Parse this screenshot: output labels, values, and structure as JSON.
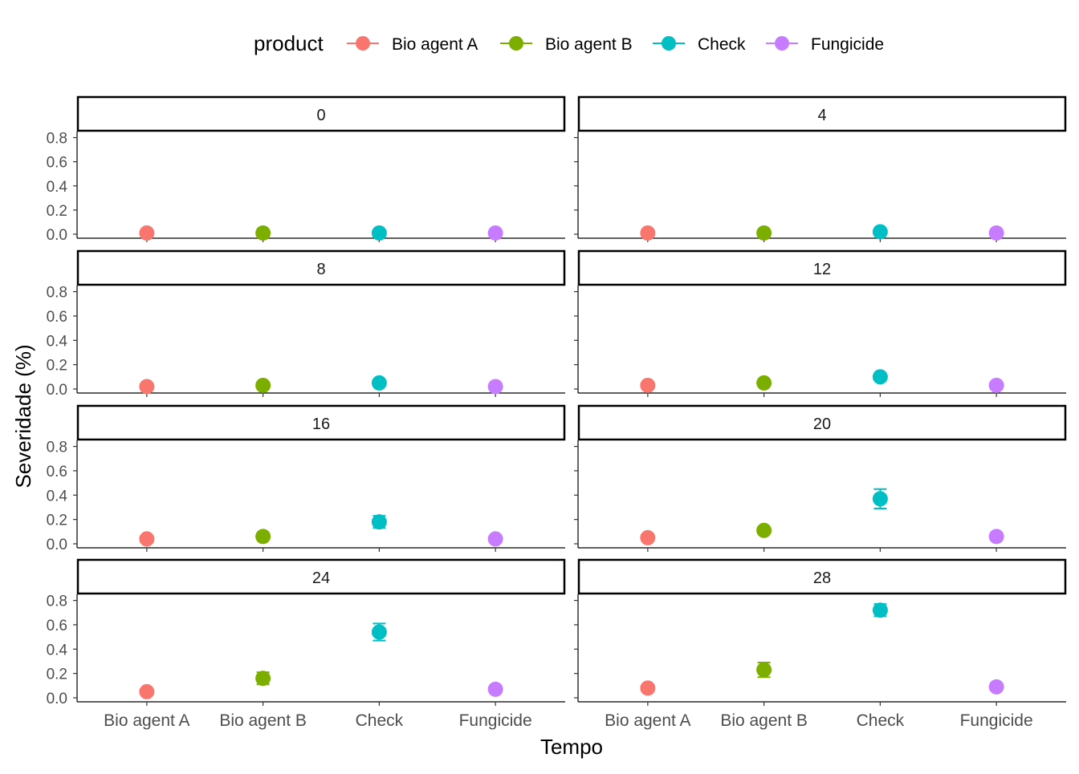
{
  "chart_data": {
    "type": "scatter",
    "legend": {
      "title": "product",
      "placement": "top",
      "entries": [
        {
          "label": "Bio agent A",
          "color": "#F8766D"
        },
        {
          "label": "Bio agent B",
          "color": "#7CAE00"
        },
        {
          "label": "Check",
          "color": "#00BFC4"
        },
        {
          "label": "Fungicide",
          "color": "#C77CFF"
        }
      ]
    },
    "xlabel": "Tempo",
    "ylabel": "Severidade (%)",
    "categories": [
      "Bio agent A",
      "Bio agent B",
      "Check",
      "Fungicide"
    ],
    "ylim": [
      0,
      0.85
    ],
    "yticks": [
      0.0,
      0.2,
      0.4,
      0.6,
      0.8
    ],
    "ytick_labels": [
      "0.0",
      "0.2",
      "0.4",
      "0.6",
      "0.8"
    ],
    "grid": false,
    "facets": [
      {
        "label": "0",
        "values": [
          0.01,
          0.01,
          0.01,
          0.01
        ],
        "errors": [
          0,
          0,
          0,
          0
        ]
      },
      {
        "label": "4",
        "values": [
          0.01,
          0.01,
          0.02,
          0.01
        ],
        "errors": [
          0,
          0,
          0,
          0
        ]
      },
      {
        "label": "8",
        "values": [
          0.02,
          0.03,
          0.05,
          0.02
        ],
        "errors": [
          0,
          0,
          0.01,
          0
        ]
      },
      {
        "label": "12",
        "values": [
          0.03,
          0.05,
          0.1,
          0.03
        ],
        "errors": [
          0,
          0,
          0.01,
          0
        ]
      },
      {
        "label": "16",
        "values": [
          0.04,
          0.06,
          0.18,
          0.04
        ],
        "errors": [
          0,
          0,
          0.05,
          0
        ]
      },
      {
        "label": "20",
        "values": [
          0.05,
          0.11,
          0.37,
          0.06
        ],
        "errors": [
          0,
          0,
          0.08,
          0
        ]
      },
      {
        "label": "24",
        "values": [
          0.05,
          0.16,
          0.54,
          0.07
        ],
        "errors": [
          0,
          0.05,
          0.07,
          0
        ]
      },
      {
        "label": "28",
        "values": [
          0.08,
          0.23,
          0.72,
          0.09
        ],
        "errors": [
          0,
          0.06,
          0.05,
          0
        ]
      }
    ]
  }
}
